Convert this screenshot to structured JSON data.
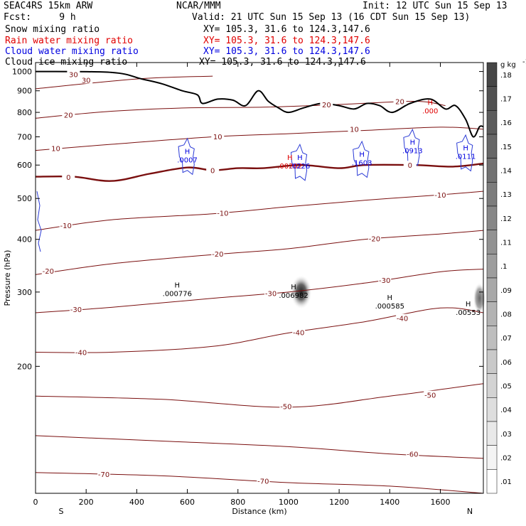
{
  "header": {
    "model": "SEAC4RS 15km ARW",
    "center": "NCAR/MMM",
    "init": "Init: 12 UTC Sun 15 Sep 13",
    "fcst": "Fcst:     9 h",
    "valid": "Valid: 21 UTC Sun 15 Sep 13 (16 CDT Sun 15 Sep 13)"
  },
  "fields": [
    {
      "name": "Snow mixing ratio",
      "xy": "XY= 105.3, 31.6 to 124.3,147.6",
      "color": "#000000"
    },
    {
      "name": "Rain water mixing ratio",
      "xy": "XY= 105.3, 31.6 to 124.3,147.6",
      "color": "#e00000"
    },
    {
      "name": "Cloud water mixing ratio",
      "xy": "XY= 105.3, 31.6 to 124.3,147.6",
      "color": "#0000e0"
    },
    {
      "name": "Cloud ice mixing ratio",
      "xy": "XY= 105.3, 31.6 to 124.3,147.6",
      "color": "#000000"
    }
  ],
  "chart_data": {
    "type": "contour-cross-section",
    "xlabel": "Distance (km)",
    "ylabel": "Pressure (hPa)",
    "xlim": [
      0,
      1770
    ],
    "ylim": [
      1050,
      100
    ],
    "y_log_scale": true,
    "x_ticks": [
      0,
      200,
      400,
      600,
      800,
      1000,
      1200,
      1400,
      1600
    ],
    "y_ticks": [
      200,
      300,
      400,
      500,
      600,
      700,
      800,
      900,
      1000
    ],
    "left_end_label": "S",
    "right_end_label": "N",
    "temperature_contours_degC": [
      {
        "t": -70,
        "label": "-70",
        "pts": [
          [
            0,
            112
          ],
          [
            500,
            110
          ],
          [
            1000,
            106
          ],
          [
            1400,
            104
          ],
          [
            1770,
            100
          ]
        ]
      },
      {
        "t": -60,
        "label": "-60",
        "pts": [
          [
            0,
            137
          ],
          [
            500,
            133
          ],
          [
            1000,
            129
          ],
          [
            1400,
            124
          ],
          [
            1770,
            121
          ]
        ]
      },
      {
        "t": -50,
        "label": "-50",
        "pts": [
          [
            0,
            170
          ],
          [
            500,
            167
          ],
          [
            1000,
            160
          ],
          [
            1400,
            170
          ],
          [
            1770,
            182
          ]
        ]
      },
      {
        "t": -40,
        "label": "-40",
        "pts": [
          [
            0,
            216
          ],
          [
            300,
            216
          ],
          [
            700,
            223
          ],
          [
            1000,
            240
          ],
          [
            1300,
            255
          ],
          [
            1600,
            275
          ],
          [
            1770,
            268
          ]
        ]
      },
      {
        "t": -30,
        "label": "-30",
        "pts": [
          [
            0,
            268
          ],
          [
            300,
            276
          ],
          [
            700,
            290
          ],
          [
            1000,
            300
          ],
          [
            1300,
            315
          ],
          [
            1600,
            335
          ],
          [
            1770,
            340
          ]
        ]
      },
      {
        "t": -20,
        "label": "-20",
        "pts": [
          [
            0,
            330
          ],
          [
            300,
            350
          ],
          [
            700,
            368
          ],
          [
            1000,
            380
          ],
          [
            1300,
            400
          ],
          [
            1600,
            412
          ],
          [
            1770,
            420
          ]
        ]
      },
      {
        "t": -10,
        "label": "-10",
        "pts": [
          [
            0,
            420
          ],
          [
            300,
            445
          ],
          [
            700,
            460
          ],
          [
            1000,
            478
          ],
          [
            1300,
            495
          ],
          [
            1600,
            510
          ],
          [
            1770,
            520
          ]
        ]
      },
      {
        "t": 0,
        "label": "0",
        "pts": [
          [
            0,
            563
          ],
          [
            150,
            563
          ],
          [
            300,
            550
          ],
          [
            450,
            572
          ],
          [
            600,
            592
          ],
          [
            700,
            583
          ],
          [
            800,
            590
          ],
          [
            900,
            590
          ],
          [
            1050,
            600
          ],
          [
            1200,
            590
          ],
          [
            1300,
            600
          ],
          [
            1500,
            600
          ],
          [
            1650,
            595
          ],
          [
            1770,
            605
          ]
        ]
      },
      {
        "t": 10,
        "label": "10",
        "pts": [
          [
            0,
            650
          ],
          [
            300,
            672
          ],
          [
            700,
            700
          ],
          [
            1000,
            712
          ],
          [
            1300,
            725
          ],
          [
            1600,
            738
          ],
          [
            1770,
            730
          ]
        ]
      },
      {
        "t": 20,
        "label": "20",
        "pts": [
          [
            0,
            775
          ],
          [
            300,
            805
          ],
          [
            600,
            820
          ],
          [
            900,
            823
          ],
          [
            1200,
            835
          ],
          [
            1500,
            850
          ],
          [
            1620,
            830
          ]
        ]
      },
      {
        "t": 30,
        "label": "30",
        "pts": [
          [
            0,
            910
          ],
          [
            400,
            960
          ],
          [
            700,
            975
          ]
        ]
      }
    ],
    "contour_labels": [
      {
        "text": "-70",
        "x": 270,
        "p": 111
      },
      {
        "text": "-70",
        "x": 900,
        "p": 107
      },
      {
        "text": "-60",
        "x": 1490,
        "p": 124
      },
      {
        "text": "-50",
        "x": 990,
        "p": 161
      },
      {
        "text": "-50",
        "x": 1560,
        "p": 171
      },
      {
        "text": "-40",
        "x": 180,
        "p": 216
      },
      {
        "text": "-40",
        "x": 1040,
        "p": 241
      },
      {
        "text": "-40",
        "x": 1450,
        "p": 260
      },
      {
        "text": "-30",
        "x": 160,
        "p": 273
      },
      {
        "text": "-30",
        "x": 930,
        "p": 298
      },
      {
        "text": "-30",
        "x": 1380,
        "p": 320
      },
      {
        "text": "-20",
        "x": 50,
        "p": 337
      },
      {
        "text": "-20",
        "x": 720,
        "p": 370
      },
      {
        "text": "-20",
        "x": 1340,
        "p": 402
      },
      {
        "text": "-10",
        "x": 120,
        "p": 432
      },
      {
        "text": "-10",
        "x": 740,
        "p": 462
      },
      {
        "text": "-10",
        "x": 1600,
        "p": 510
      },
      {
        "text": "0",
        "x": 130,
        "p": 562
      },
      {
        "text": "0",
        "x": 700,
        "p": 583
      },
      {
        "text": "0",
        "x": 1480,
        "p": 600
      },
      {
        "text": "10",
        "x": 80,
        "p": 658
      },
      {
        "text": "10",
        "x": 720,
        "p": 702
      },
      {
        "text": "10",
        "x": 1260,
        "p": 730
      },
      {
        "text": "20",
        "x": 130,
        "p": 790
      },
      {
        "text": "20",
        "x": 1150,
        "p": 835
      },
      {
        "text": "20",
        "x": 1440,
        "p": 850
      },
      {
        "text": "30",
        "x": 200,
        "p": 955
      },
      {
        "text": "30",
        "x": 150,
        "p": 985
      }
    ],
    "terrain": [
      [
        0,
        1000
      ],
      [
        300,
        995
      ],
      [
        420,
        960
      ],
      [
        500,
        935
      ],
      [
        580,
        900
      ],
      [
        640,
        880
      ],
      [
        660,
        840
      ],
      [
        720,
        860
      ],
      [
        780,
        855
      ],
      [
        830,
        830
      ],
      [
        880,
        900
      ],
      [
        920,
        850
      ],
      [
        960,
        820
      ],
      [
        1000,
        800
      ],
      [
        1060,
        820
      ],
      [
        1130,
        840
      ],
      [
        1200,
        830
      ],
      [
        1260,
        815
      ],
      [
        1310,
        840
      ],
      [
        1360,
        830
      ],
      [
        1410,
        800
      ],
      [
        1480,
        840
      ],
      [
        1560,
        860
      ],
      [
        1620,
        815
      ],
      [
        1660,
        830
      ],
      [
        1700,
        770
      ],
      [
        1730,
        700
      ],
      [
        1755,
        740
      ],
      [
        1770,
        740
      ]
    ],
    "maxima": [
      {
        "field": "snow",
        "text": ".000776",
        "x": 560,
        "p": 303,
        "color": "#000000"
      },
      {
        "field": "snow",
        "text": ".006982",
        "x": 1020,
        "p": 300,
        "color": "#000000"
      },
      {
        "field": "snow",
        "text": ".000585",
        "x": 1400,
        "p": 283,
        "color": "#000000"
      },
      {
        "field": "snow",
        "text": ".00553",
        "x": 1710,
        "p": 273,
        "color": "#000000"
      },
      {
        "field": "rain",
        "text": ".00262",
        "x": 1005,
        "p": 608,
        "color": "#e00000"
      },
      {
        "field": "rain",
        "text": ".000",
        "x": 1560,
        "p": 820,
        "color": "#e00000"
      },
      {
        "field": "cloud_water",
        "text": ".0007",
        "x": 600,
        "p": 628,
        "color": "#0000e0"
      },
      {
        "field": "cloud_water",
        "text": ".0226",
        "x": 1045,
        "p": 608,
        "color": "#0000e0"
      },
      {
        "field": "cloud_water",
        "text": ".1603",
        "x": 1290,
        "p": 618,
        "color": "#0000e0"
      },
      {
        "field": "cloud_water",
        "text": ".0913",
        "x": 1490,
        "p": 660,
        "color": "#0000e0"
      },
      {
        "field": "cloud_water",
        "text": ".0111",
        "x": 1700,
        "p": 640,
        "color": "#0000e0"
      }
    ],
    "shaded_snow_regions": [
      {
        "x": 1050,
        "p": 300,
        "max": 0.18
      },
      {
        "x": 1755,
        "p": 290,
        "max": 0.14
      }
    ],
    "colorbar": {
      "unit": "g kg",
      "unit_exp": "-1",
      "levels": [
        ".18",
        ".17",
        ".16",
        ".15",
        ".14",
        ".13",
        ".12",
        ".11",
        ".1",
        ".09",
        ".08",
        ".07",
        ".06",
        ".05",
        ".04",
        ".03",
        ".02",
        ".01"
      ]
    }
  }
}
